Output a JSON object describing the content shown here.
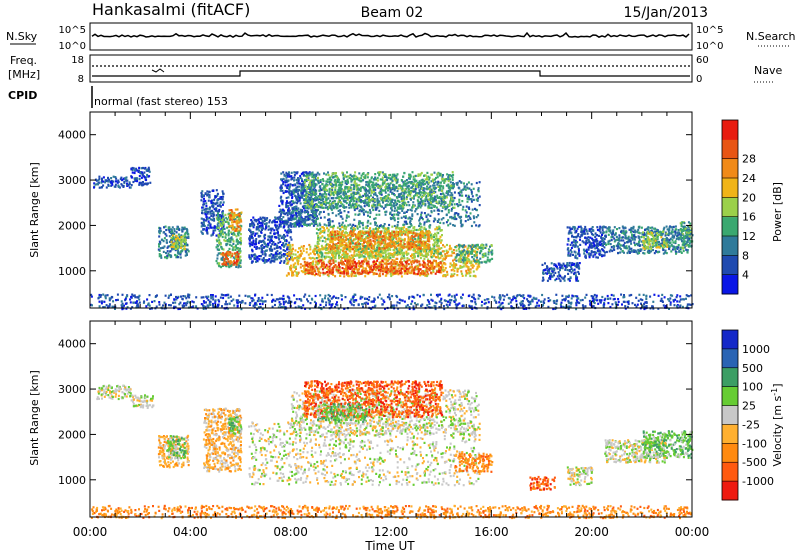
{
  "header": {
    "station": "Hankasalmi (fitACF)",
    "beam": "Beam 02",
    "date": "15/Jan/2013"
  },
  "top_panels": {
    "nsky_label": "N.Sky",
    "nsearch_label": "N.Search",
    "nsky_ticks": [
      "10^5",
      "10^0"
    ],
    "nsearch_ticks": [
      "10^5",
      "10^0"
    ],
    "freq_label_1": "Freq.",
    "freq_label_2": "[MHz]",
    "freq_ticks": [
      "18",
      "8"
    ],
    "nave_label": "Nave",
    "nave_ticks": [
      "60",
      "0"
    ],
    "cpid_label": "CPID",
    "cpid_text": "normal (fast stereo) 153"
  },
  "chart_data": [
    {
      "type": "heatmap",
      "quantity": "Power",
      "ylabel": "Slant Range [km]",
      "ylim": [
        180,
        4500
      ],
      "yticks": [
        1000,
        2000,
        3000,
        4000
      ],
      "xlim": [
        0,
        24
      ],
      "colorbar": {
        "label": "Power [dB]",
        "ticks": [
          "4",
          "8",
          "12",
          "16",
          "20",
          "24",
          "28"
        ],
        "colors": [
          "#0a16e6",
          "#1f4ab0",
          "#2f7a9a",
          "#3aa870",
          "#9bd04a",
          "#f0b418",
          "#f08a18",
          "#e85514",
          "#e81c10"
        ]
      },
      "echo_regions": [
        {
          "t0": 0.1,
          "t1": 1.6,
          "r0": 2850,
          "r1": 3100,
          "level": 1
        },
        {
          "t0": 1.6,
          "t1": 2.4,
          "r0": 2900,
          "r1": 3300,
          "level": 1
        },
        {
          "t0": 2.7,
          "t1": 3.9,
          "r0": 1300,
          "r1": 2000,
          "level": 2
        },
        {
          "t0": 3.2,
          "t1": 3.8,
          "r0": 1500,
          "r1": 1800,
          "level": 4
        },
        {
          "t0": 4.4,
          "t1": 5.3,
          "r0": 1800,
          "r1": 2800,
          "level": 1
        },
        {
          "t0": 5.0,
          "t1": 6.0,
          "r0": 1100,
          "r1": 2300,
          "level": 3
        },
        {
          "t0": 5.2,
          "t1": 5.9,
          "r0": 1150,
          "r1": 1450,
          "level": 7
        },
        {
          "t0": 5.5,
          "t1": 6.0,
          "r0": 1900,
          "r1": 2400,
          "level": 6
        },
        {
          "t0": 6.3,
          "t1": 8.0,
          "r0": 1200,
          "r1": 2200,
          "level": 1
        },
        {
          "t0": 7.5,
          "t1": 9.0,
          "r0": 2000,
          "r1": 3200,
          "level": 1
        },
        {
          "t0": 7.8,
          "t1": 15.5,
          "r0": 900,
          "r1": 1600,
          "level": 5
        },
        {
          "t0": 8.5,
          "t1": 14.0,
          "r0": 950,
          "r1": 1250,
          "level": 7
        },
        {
          "t0": 9.0,
          "t1": 14.0,
          "r0": 1300,
          "r1": 2000,
          "level": 4
        },
        {
          "t0": 9.5,
          "t1": 13.5,
          "r0": 1500,
          "r1": 1900,
          "level": 6
        },
        {
          "t0": 8.0,
          "t1": 15.5,
          "r0": 2000,
          "r1": 3000,
          "level": 2
        },
        {
          "t0": 8.5,
          "t1": 14.5,
          "r0": 2400,
          "r1": 3200,
          "level": 3
        },
        {
          "t0": 14.5,
          "t1": 16.0,
          "r0": 1200,
          "r1": 1600,
          "level": 3
        },
        {
          "t0": 18.0,
          "t1": 19.5,
          "r0": 800,
          "r1": 1200,
          "level": 1
        },
        {
          "t0": 19.0,
          "t1": 20.5,
          "r0": 1300,
          "r1": 2000,
          "level": 1
        },
        {
          "t0": 20.5,
          "t1": 23.9,
          "r0": 1400,
          "r1": 2000,
          "level": 2
        },
        {
          "t0": 22.0,
          "t1": 23.0,
          "r0": 1500,
          "r1": 1900,
          "level": 4
        },
        {
          "t0": 23.5,
          "t1": 24.0,
          "r0": 1500,
          "r1": 2100,
          "level": 3
        },
        {
          "t0": 0.0,
          "t1": 24.0,
          "r0": 180,
          "r1": 500,
          "level": 1
        }
      ]
    },
    {
      "type": "heatmap",
      "quantity": "Velocity",
      "ylabel": "Slant Range [km]",
      "ylim": [
        180,
        4500
      ],
      "yticks": [
        1000,
        2000,
        3000,
        4000
      ],
      "xlim": [
        0,
        24
      ],
      "xticks": [
        "00:00",
        "04:00",
        "08:00",
        "12:00",
        "16:00",
        "20:00",
        "00:00"
      ],
      "xlabel": "Time UT",
      "colorbar": {
        "label": "Velocity [m s",
        "label_sup": "-1",
        "label_end": "]",
        "ticks": [
          "1000",
          "500",
          "100",
          "25",
          "-25",
          "-100",
          "-500",
          "-1000"
        ],
        "colors": [
          "#1428c8",
          "#2a64b4",
          "#3c9e64",
          "#66cc33",
          "#c8c8c8",
          "#ffb030",
          "#ff8a10",
          "#ff5a10",
          "#ee1a10"
        ]
      },
      "echo_regions": [
        {
          "t0": 0.2,
          "t1": 1.6,
          "r0": 2800,
          "r1": 3100,
          "level": 4
        },
        {
          "t0": 1.6,
          "t1": 2.5,
          "r0": 2600,
          "r1": 2900,
          "level": 4
        },
        {
          "t0": 2.7,
          "t1": 3.9,
          "r0": 1300,
          "r1": 2000,
          "level": 5
        },
        {
          "t0": 3.0,
          "t1": 3.8,
          "r0": 1500,
          "r1": 2000,
          "level": 3
        },
        {
          "t0": 4.5,
          "t1": 6.0,
          "r0": 1200,
          "r1": 2600,
          "level": 5
        },
        {
          "t0": 5.5,
          "t1": 6.0,
          "r0": 2000,
          "r1": 2400,
          "level": 3
        },
        {
          "t0": 6.3,
          "t1": 15.5,
          "r0": 900,
          "r1": 2300,
          "level": 4
        },
        {
          "t0": 8.0,
          "t1": 15.5,
          "r0": 2000,
          "r1": 3000,
          "level": 4
        },
        {
          "t0": 8.5,
          "t1": 14.0,
          "r0": 2400,
          "r1": 3200,
          "level": 7
        },
        {
          "t0": 9.0,
          "t1": 11.0,
          "r0": 2300,
          "r1": 2700,
          "level": 3
        },
        {
          "t0": 14.5,
          "t1": 16.0,
          "r0": 1200,
          "r1": 1600,
          "level": 6
        },
        {
          "t0": 17.5,
          "t1": 18.5,
          "r0": 800,
          "r1": 1100,
          "level": 7
        },
        {
          "t0": 19.0,
          "t1": 20.0,
          "r0": 900,
          "r1": 1300,
          "level": 4
        },
        {
          "t0": 20.5,
          "t1": 23.0,
          "r0": 1400,
          "r1": 1900,
          "level": 4
        },
        {
          "t0": 22.0,
          "t1": 24.0,
          "r0": 1500,
          "r1": 2100,
          "level": 3
        },
        {
          "t0": 0.0,
          "t1": 24.0,
          "r0": 180,
          "r1": 450,
          "level": 6
        }
      ]
    }
  ]
}
